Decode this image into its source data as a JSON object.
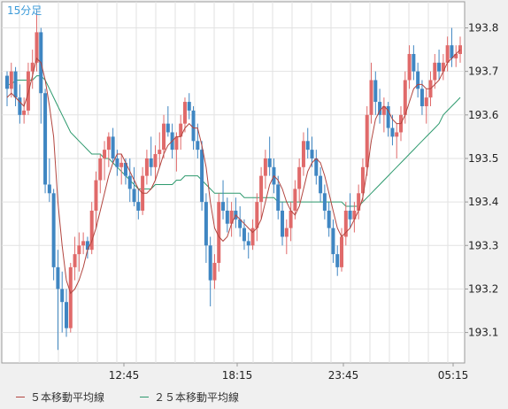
{
  "chart_data": {
    "type": "candlestick",
    "period_label": "15分足",
    "ylim": [
      193.03,
      193.86
    ],
    "y_ticks": [
      "193.1",
      "193.2",
      "193.3",
      "193.4",
      "193.5",
      "193.6",
      "193.7",
      "193.8"
    ],
    "x_ticks": [
      "12:45",
      "18:15",
      "23:45",
      "05:15"
    ],
    "grid": true,
    "legend_position": "bottom",
    "colors": {
      "up": "#e06a6a",
      "down": "#3f86c2",
      "ma5": "#b2453f",
      "ma25": "#2e9a6e",
      "grid": "#e2e2e2",
      "plot_bg": "#ffffff"
    },
    "series": [
      {
        "name": "５本移動平均線",
        "color": "#b2453f"
      },
      {
        "name": "２５本移動平均線",
        "color": "#2e9a6e"
      }
    ],
    "ohlc": [
      [
        193.69,
        193.7,
        193.62,
        193.66
      ],
      [
        193.66,
        193.72,
        193.64,
        193.7
      ],
      [
        193.7,
        193.71,
        193.62,
        193.64
      ],
      [
        193.64,
        193.67,
        193.58,
        193.6
      ],
      [
        193.6,
        193.64,
        193.58,
        193.61
      ],
      [
        193.61,
        193.72,
        193.6,
        193.7
      ],
      [
        193.7,
        193.75,
        193.66,
        193.72
      ],
      [
        193.72,
        193.84,
        193.7,
        193.79
      ],
      [
        193.79,
        193.8,
        193.58,
        193.65
      ],
      [
        193.65,
        193.66,
        193.42,
        193.44
      ],
      [
        193.44,
        193.5,
        193.4,
        193.42
      ],
      [
        193.42,
        193.43,
        193.22,
        193.25
      ],
      [
        193.25,
        193.29,
        193.06,
        193.2
      ],
      [
        193.2,
        193.24,
        193.1,
        193.17
      ],
      [
        193.17,
        193.2,
        193.09,
        193.11
      ],
      [
        193.11,
        193.26,
        193.1,
        193.25
      ],
      [
        193.25,
        193.32,
        193.22,
        193.28
      ],
      [
        193.28,
        193.33,
        193.24,
        193.3
      ],
      [
        193.3,
        193.33,
        193.28,
        193.31
      ],
      [
        193.31,
        193.32,
        193.27,
        193.29
      ],
      [
        193.29,
        193.4,
        193.28,
        193.38
      ],
      [
        193.38,
        193.47,
        193.34,
        193.45
      ],
      [
        193.45,
        193.51,
        193.42,
        193.5
      ],
      [
        193.5,
        193.54,
        193.45,
        193.52
      ],
      [
        193.52,
        193.56,
        193.48,
        193.55
      ],
      [
        193.55,
        193.57,
        193.49,
        193.5
      ],
      [
        193.5,
        193.52,
        193.46,
        193.48
      ],
      [
        193.48,
        193.51,
        193.44,
        193.49
      ],
      [
        193.49,
        193.5,
        193.44,
        193.46
      ],
      [
        193.46,
        193.5,
        193.4,
        193.43
      ],
      [
        193.43,
        193.48,
        193.39,
        193.4
      ],
      [
        193.4,
        193.43,
        193.36,
        193.38
      ],
      [
        193.38,
        193.48,
        193.37,
        193.46
      ],
      [
        193.46,
        193.52,
        193.44,
        193.5
      ],
      [
        193.5,
        193.55,
        193.46,
        193.48
      ],
      [
        193.48,
        193.53,
        193.45,
        193.51
      ],
      [
        193.51,
        193.56,
        193.48,
        193.52
      ],
      [
        193.52,
        193.6,
        193.5,
        193.58
      ],
      [
        193.58,
        193.62,
        193.55,
        193.56
      ],
      [
        193.56,
        193.58,
        193.5,
        193.52
      ],
      [
        193.52,
        193.56,
        193.47,
        193.55
      ],
      [
        193.55,
        193.6,
        193.52,
        193.58
      ],
      [
        193.58,
        193.64,
        193.56,
        193.63
      ],
      [
        193.63,
        193.65,
        193.59,
        193.61
      ],
      [
        193.61,
        193.62,
        193.52,
        193.54
      ],
      [
        193.54,
        193.58,
        193.5,
        193.52
      ],
      [
        193.52,
        193.54,
        193.38,
        193.4
      ],
      [
        193.4,
        193.42,
        193.26,
        193.3
      ],
      [
        193.3,
        193.32,
        193.16,
        193.22
      ],
      [
        193.22,
        193.28,
        193.2,
        193.26
      ],
      [
        193.26,
        193.42,
        193.24,
        193.4
      ],
      [
        193.4,
        193.45,
        193.36,
        193.38
      ],
      [
        193.38,
        193.41,
        193.33,
        193.35
      ],
      [
        193.35,
        193.4,
        193.32,
        193.38
      ],
      [
        193.38,
        193.41,
        193.34,
        193.36
      ],
      [
        193.36,
        193.39,
        193.32,
        193.34
      ],
      [
        193.34,
        193.36,
        193.29,
        193.31
      ],
      [
        193.31,
        193.33,
        193.27,
        193.3
      ],
      [
        193.3,
        193.36,
        193.29,
        193.34
      ],
      [
        193.34,
        193.42,
        193.31,
        193.4
      ],
      [
        193.4,
        193.48,
        193.36,
        193.46
      ],
      [
        193.46,
        193.52,
        193.43,
        193.5
      ],
      [
        193.5,
        193.55,
        193.46,
        193.48
      ],
      [
        193.48,
        193.5,
        193.42,
        193.44
      ],
      [
        193.44,
        193.46,
        193.36,
        193.38
      ],
      [
        193.38,
        193.4,
        193.3,
        193.32
      ],
      [
        193.32,
        193.36,
        193.28,
        193.34
      ],
      [
        193.34,
        193.4,
        193.31,
        193.38
      ],
      [
        193.38,
        193.45,
        193.36,
        193.43
      ],
      [
        193.43,
        193.5,
        193.4,
        193.48
      ],
      [
        193.48,
        193.56,
        193.46,
        193.54
      ],
      [
        193.54,
        193.57,
        193.5,
        193.52
      ],
      [
        193.52,
        193.55,
        193.48,
        193.5
      ],
      [
        193.5,
        193.52,
        193.44,
        193.46
      ],
      [
        193.46,
        193.48,
        193.4,
        193.42
      ],
      [
        193.42,
        193.44,
        193.36,
        193.38
      ],
      [
        193.38,
        193.4,
        193.32,
        193.34
      ],
      [
        193.34,
        193.36,
        193.26,
        193.28
      ],
      [
        193.28,
        193.3,
        193.23,
        193.25
      ],
      [
        193.25,
        193.34,
        193.24,
        193.32
      ],
      [
        193.32,
        193.4,
        193.3,
        193.38
      ],
      [
        193.38,
        193.42,
        193.34,
        193.36
      ],
      [
        193.36,
        193.4,
        193.33,
        193.38
      ],
      [
        193.38,
        193.44,
        193.36,
        193.42
      ],
      [
        193.42,
        193.5,
        193.4,
        193.48
      ],
      [
        193.48,
        193.62,
        193.46,
        193.6
      ],
      [
        193.6,
        193.72,
        193.58,
        193.68
      ],
      [
        193.68,
        193.7,
        193.6,
        193.63
      ],
      [
        193.63,
        193.66,
        193.58,
        193.6
      ],
      [
        193.6,
        193.64,
        193.56,
        193.62
      ],
      [
        193.62,
        193.63,
        193.55,
        193.57
      ],
      [
        193.57,
        193.6,
        193.53,
        193.55
      ],
      [
        193.55,
        193.58,
        193.5,
        193.56
      ],
      [
        193.56,
        193.62,
        193.54,
        193.6
      ],
      [
        193.6,
        193.7,
        193.58,
        193.68
      ],
      [
        193.68,
        193.76,
        193.66,
        193.74
      ],
      [
        193.74,
        193.76,
        193.68,
        193.7
      ],
      [
        193.7,
        193.72,
        193.64,
        193.66
      ],
      [
        193.66,
        193.68,
        193.6,
        193.62
      ],
      [
        193.62,
        193.66,
        193.58,
        193.64
      ],
      [
        193.64,
        193.7,
        193.62,
        193.68
      ],
      [
        193.68,
        193.74,
        193.66,
        193.72
      ],
      [
        193.72,
        193.75,
        193.68,
        193.7
      ],
      [
        193.7,
        193.74,
        193.68,
        193.72
      ],
      [
        193.72,
        193.78,
        193.7,
        193.76
      ],
      [
        193.76,
        193.8,
        193.71,
        193.73
      ],
      [
        193.73,
        193.76,
        193.71,
        193.74
      ],
      [
        193.74,
        193.78,
        193.72,
        193.76
      ]
    ],
    "ma5": [
      193.64,
      193.65,
      193.64,
      193.63,
      193.62,
      193.65,
      193.69,
      193.73,
      193.72,
      193.68,
      193.62,
      193.55,
      193.4,
      193.3,
      193.22,
      193.19,
      193.2,
      193.22,
      193.25,
      193.29,
      193.31,
      193.34,
      193.38,
      193.42,
      193.46,
      193.49,
      193.51,
      193.51,
      193.49,
      193.47,
      193.45,
      193.43,
      193.42,
      193.42,
      193.43,
      193.45,
      193.48,
      193.51,
      193.53,
      193.54,
      193.55,
      193.55,
      193.57,
      193.58,
      193.57,
      193.57,
      193.53,
      193.48,
      193.4,
      193.34,
      193.32,
      193.31,
      193.32,
      193.35,
      193.37,
      193.36,
      193.35,
      193.34,
      193.33,
      193.34,
      193.36,
      193.4,
      193.44,
      193.46,
      193.45,
      193.43,
      193.4,
      193.38,
      193.37,
      193.39,
      193.43,
      193.47,
      193.49,
      193.5,
      193.49,
      193.46,
      193.42,
      193.38,
      193.34,
      193.32,
      193.33,
      193.34,
      193.36,
      193.38,
      193.41,
      193.47,
      193.54,
      193.59,
      193.61,
      193.62,
      193.61,
      193.59,
      193.58,
      193.58,
      193.6,
      193.63,
      193.66,
      193.67,
      193.67,
      193.66,
      193.66,
      193.67,
      193.68,
      193.7,
      193.72,
      193.73,
      193.74,
      193.75
    ],
    "ma25": [
      193.67,
      193.67,
      193.68,
      193.68,
      193.68,
      193.68,
      193.68,
      193.69,
      193.69,
      193.68,
      193.66,
      193.64,
      193.62,
      193.6,
      193.58,
      193.56,
      193.55,
      193.54,
      193.53,
      193.52,
      193.51,
      193.51,
      193.51,
      193.5,
      193.5,
      193.49,
      193.48,
      193.47,
      193.46,
      193.45,
      193.44,
      193.43,
      193.43,
      193.43,
      193.43,
      193.44,
      193.44,
      193.44,
      193.44,
      193.44,
      193.45,
      193.45,
      193.46,
      193.46,
      193.46,
      193.46,
      193.45,
      193.44,
      193.43,
      193.42,
      193.42,
      193.42,
      193.42,
      193.42,
      193.42,
      193.42,
      193.41,
      193.41,
      193.41,
      193.41,
      193.41,
      193.41,
      193.41,
      193.41,
      193.4,
      193.4,
      193.4,
      193.4,
      193.4,
      193.4,
      193.4,
      193.4,
      193.4,
      193.4,
      193.4,
      193.4,
      193.4,
      193.4,
      193.4,
      193.4,
      193.39,
      193.39,
      193.39,
      193.39,
      193.4,
      193.41,
      193.42,
      193.43,
      193.44,
      193.45,
      193.46,
      193.47,
      193.48,
      193.49,
      193.5,
      193.51,
      193.52,
      193.53,
      193.54,
      193.55,
      193.56,
      193.57,
      193.58,
      193.6,
      193.61,
      193.62,
      193.63,
      193.64
    ]
  }
}
